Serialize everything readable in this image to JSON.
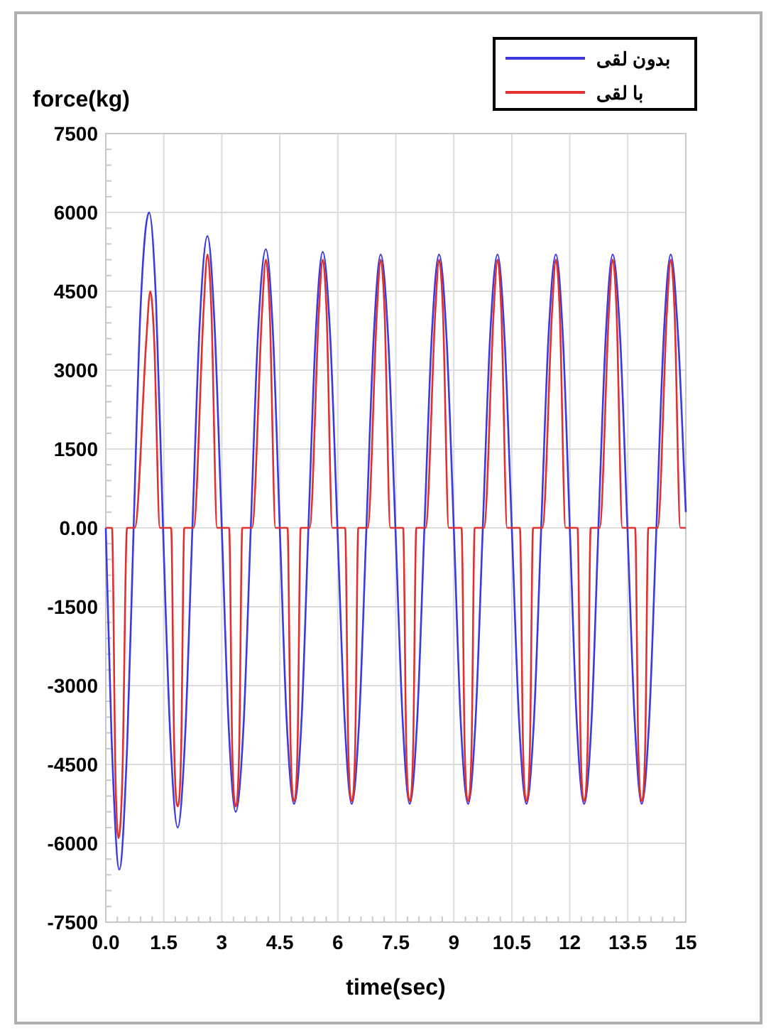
{
  "chart_data": {
    "type": "line",
    "xlabel": "time(sec)",
    "ylabel": "force(kg)",
    "xlim": [
      0,
      15
    ],
    "ylim": [
      -7500,
      7500
    ],
    "xticks": [
      {
        "value": 0,
        "label": "0.0"
      },
      1.5,
      3,
      4.5,
      6,
      7.5,
      9,
      10.5,
      12,
      13.5,
      15
    ],
    "yticks": [
      -7500,
      -6000,
      -4500,
      -3000,
      -1500,
      {
        "value": 0,
        "label": "0.00"
      },
      1500,
      3000,
      4500,
      6000,
      7500
    ],
    "grid": true,
    "legend": "top right",
    "line_style": "solid",
    "marker": "none",
    "series": [
      {
        "name": "بدون لقی",
        "color": "#3a3ae0",
        "x": [
          0,
          0.15,
          0.35,
          0.55,
          0.72,
          0.9,
          1.12,
          1.3,
          1.48,
          1.67,
          1.86,
          2.05,
          2.24,
          2.43,
          2.63,
          2.81,
          3.0,
          3.18,
          3.36,
          3.56,
          3.75,
          3.94,
          4.14,
          4.32,
          4.5,
          4.68,
          4.87,
          5.06,
          5.24,
          5.43,
          5.61,
          5.8,
          5.99,
          6.18,
          6.36,
          6.55,
          6.74,
          6.93,
          7.11,
          7.3,
          7.49,
          7.68,
          7.86,
          8.05,
          8.24,
          8.43,
          8.62,
          8.81,
          9.0,
          9.18,
          9.37,
          9.56,
          9.75,
          9.94,
          10.13,
          10.31,
          10.5,
          10.69,
          10.88,
          11.07,
          11.26,
          11.45,
          11.64,
          11.82,
          12.0,
          12.18,
          12.37,
          12.56,
          12.74,
          12.93,
          13.11,
          13.3,
          13.49,
          13.68,
          13.86,
          14.05,
          14.24,
          14.43,
          14.61,
          14.8,
          15
        ],
        "values": [
          0,
          -4000,
          -6500,
          -4200,
          0,
          4200,
          6000,
          4300,
          0,
          -4000,
          -5700,
          -4000,
          0,
          3900,
          5550,
          3900,
          0,
          -3800,
          -5400,
          -3800,
          0,
          3750,
          5300,
          3750,
          0,
          -3700,
          -5250,
          -3700,
          0,
          3700,
          5250,
          3700,
          0,
          -3700,
          -5250,
          -3700,
          0,
          3650,
          5200,
          3650,
          0,
          -3700,
          -5250,
          -3700,
          0,
          3650,
          5200,
          3650,
          0,
          -3700,
          -5250,
          -3700,
          0,
          3650,
          5200,
          3650,
          0,
          -3700,
          -5250,
          -3700,
          0,
          3650,
          5200,
          3650,
          0,
          -3700,
          -5250,
          -3700,
          0,
          3650,
          5200,
          3650,
          0,
          -3700,
          -5250,
          -3700,
          0,
          3650,
          5200,
          3650,
          300
        ]
      },
      {
        "name": "با لقی",
        "color": "#e03030",
        "x": [
          0,
          0.16,
          0.25,
          0.33,
          0.43,
          0.55,
          0.75,
          1.05,
          1.15,
          1.25,
          1.4,
          1.69,
          1.77,
          1.86,
          1.95,
          2.03,
          2.27,
          2.53,
          2.63,
          2.73,
          2.88,
          3.19,
          3.27,
          3.36,
          3.45,
          3.53,
          3.78,
          4.04,
          4.14,
          4.24,
          4.39,
          4.7,
          4.78,
          4.87,
          4.96,
          5.04,
          5.27,
          5.51,
          5.61,
          5.71,
          5.86,
          6.19,
          6.27,
          6.36,
          6.45,
          6.53,
          6.77,
          7.01,
          7.11,
          7.21,
          7.36,
          7.69,
          7.77,
          7.86,
          7.95,
          8.03,
          8.27,
          8.52,
          8.62,
          8.72,
          8.87,
          9.2,
          9.28,
          9.37,
          9.46,
          9.54,
          9.78,
          10.03,
          10.13,
          10.23,
          10.38,
          10.71,
          10.79,
          10.88,
          10.97,
          11.05,
          11.29,
          11.54,
          11.64,
          11.74,
          11.89,
          12.2,
          12.28,
          12.37,
          12.46,
          12.54,
          12.77,
          13.01,
          13.11,
          13.21,
          13.36,
          13.69,
          13.77,
          13.86,
          13.95,
          14.03,
          14.27,
          14.51,
          14.61,
          14.71,
          14.86,
          15
        ],
        "values": [
          0,
          0,
          -4700,
          -5900,
          -4700,
          0,
          0,
          3600,
          4500,
          3600,
          0,
          0,
          -4200,
          -5300,
          -4200,
          0,
          0,
          4150,
          5200,
          4150,
          0,
          0,
          -4200,
          -5300,
          -4200,
          0,
          0,
          4100,
          5100,
          4100,
          0,
          0,
          -4150,
          -5200,
          -4150,
          0,
          0,
          4100,
          5100,
          4100,
          0,
          0,
          -4150,
          -5200,
          -4150,
          0,
          0,
          4100,
          5100,
          4100,
          0,
          0,
          -4150,
          -5200,
          -4150,
          0,
          0,
          4100,
          5100,
          4100,
          0,
          0,
          -4150,
          -5200,
          -4150,
          0,
          0,
          4100,
          5100,
          4100,
          0,
          0,
          -4150,
          -5200,
          -4150,
          0,
          0,
          4100,
          5100,
          4100,
          0,
          0,
          -4150,
          -5200,
          -4150,
          0,
          0,
          4100,
          5100,
          4100,
          0,
          0,
          -4150,
          -5200,
          -4150,
          0,
          0,
          4100,
          5100,
          4100,
          0,
          0
        ]
      }
    ]
  }
}
